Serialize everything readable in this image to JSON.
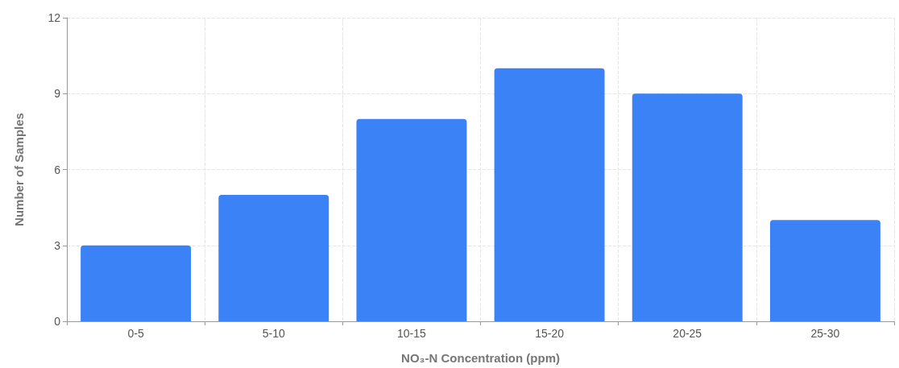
{
  "chart_data": {
    "type": "bar",
    "xlabel": "NO₃-N Concentration (ppm)",
    "ylabel": "Number of Samples",
    "categories": [
      "0-5",
      "5-10",
      "10-15",
      "15-20",
      "20-25",
      "25-30"
    ],
    "values": [
      3,
      5,
      8,
      10,
      9,
      4
    ],
    "color": "#3b82f6",
    "ylim": [
      0,
      12
    ],
    "yticks": [
      0,
      3,
      6,
      9,
      12
    ],
    "grid": true
  }
}
